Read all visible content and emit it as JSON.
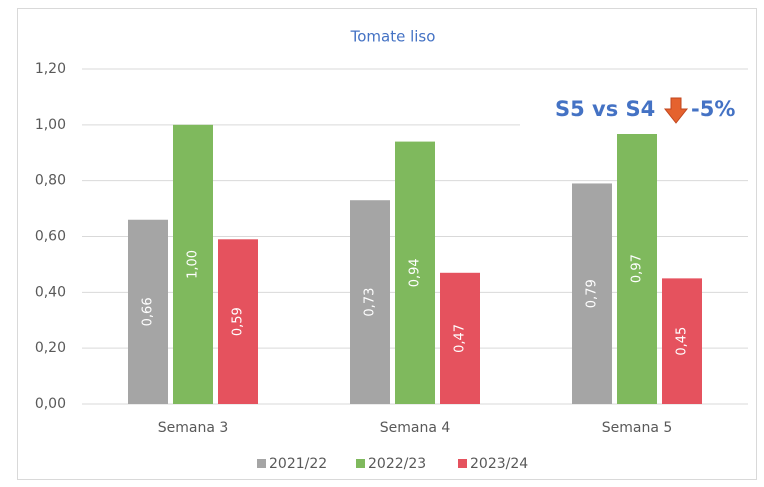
{
  "chart_data": {
    "type": "bar",
    "title": "Tomate liso",
    "categories": [
      "Semana 3",
      "Semana 4",
      "Semana 5"
    ],
    "series": [
      {
        "name": "2021/22",
        "color": "#a5a5a5",
        "values": [
          0.66,
          0.73,
          0.79
        ],
        "value_labels": [
          "0,66",
          "0,73",
          "0,79"
        ]
      },
      {
        "name": "2022/23",
        "color": "#7fb95d",
        "values": [
          1.0,
          0.94,
          0.97
        ],
        "value_labels": [
          "1,00",
          "0,94",
          "0,97"
        ]
      },
      {
        "name": "2023/24",
        "color": "#e5525e",
        "values": [
          0.59,
          0.47,
          0.45
        ],
        "value_labels": [
          "0,59",
          "0,47",
          "0,45"
        ]
      }
    ],
    "ylim": [
      0,
      1.2
    ],
    "yticks": [
      {
        "value": 0,
        "label": "0,00"
      },
      {
        "value": 0.2,
        "label": "0,20"
      },
      {
        "value": 0.4,
        "label": "0,40"
      },
      {
        "value": 0.6,
        "label": "0,60"
      },
      {
        "value": 0.8,
        "label": "0,80"
      },
      {
        "value": 1.0,
        "label": "1,00"
      },
      {
        "value": 1.2,
        "label": "1,20"
      }
    ],
    "grid": true,
    "legend": "bottom",
    "annotation": {
      "text": "S5 vs S4",
      "change": "-5%"
    }
  }
}
